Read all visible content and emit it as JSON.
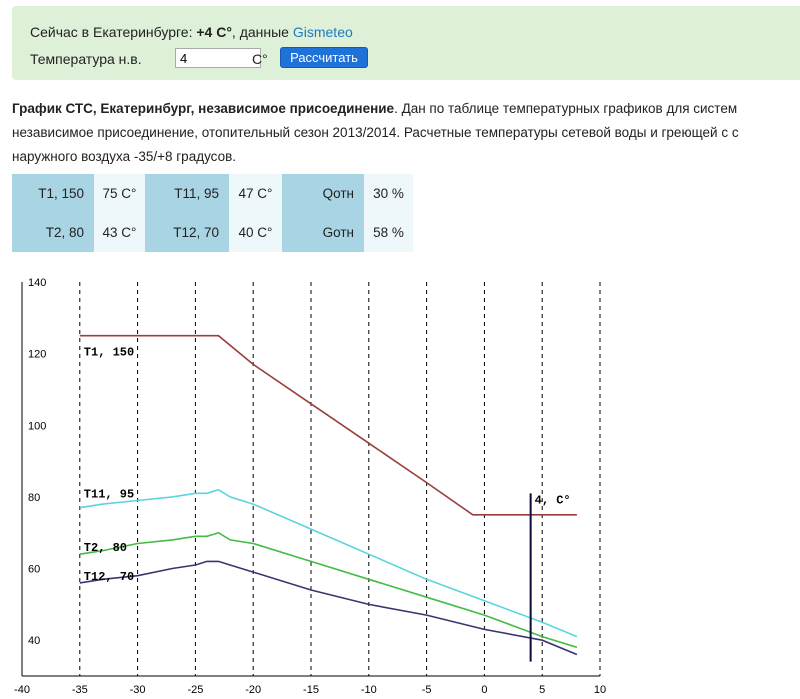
{
  "header": {
    "prefix": "Сейчас в Екатеринбурге:",
    "temp": "+4 С°",
    "middle": ", данные",
    "source_link": "Gismeteo",
    "input_label": "Температура н.в.",
    "input_value": "4",
    "input_unit": "С°",
    "button_label": "Рассчитать"
  },
  "description": {
    "title": "График СТС, Екатеринбург, независимое присоединение",
    "line1": ". Дан по таблице температурных графиков для систем",
    "line2": "независимое присоединение, отопительный сезон 2013/2014. Расчетные температуры сетевой воды и греющей с с",
    "line3": "наружного воздуха -35/+8 градусов."
  },
  "params": [
    [
      {
        "k": "T1, 150",
        "v": "75 С°"
      },
      {
        "k": "T11, 95",
        "v": "47 С°"
      },
      {
        "k": "Qотн",
        "v": "30 %"
      }
    ],
    [
      {
        "k": "T2, 80",
        "v": "43 С°"
      },
      {
        "k": "T12, 70",
        "v": "40 С°"
      },
      {
        "k": "Gотн",
        "v": "58 %"
      }
    ]
  ],
  "chart_data": {
    "type": "line",
    "xlim": [
      -40,
      10
    ],
    "ylim": [
      30,
      140
    ],
    "xticks": [
      -40,
      -35,
      -30,
      -25,
      -20,
      -15,
      -10,
      -5,
      0,
      5,
      10
    ],
    "yticks": [
      40,
      60,
      80,
      100,
      120,
      140
    ],
    "grid": "vertical dashed",
    "marker": {
      "x": 4,
      "label": "4, С°",
      "ymin": 34,
      "ymax": 81
    },
    "series": [
      {
        "name": "T1, 150",
        "color": "#9b3d3d",
        "x": [
          -35,
          -23,
          -20,
          -15,
          -10,
          -5,
          -1,
          8
        ],
        "y": [
          125,
          125,
          117,
          106,
          95,
          84,
          75,
          75
        ]
      },
      {
        "name": "T11, 95",
        "color": "#5bd4dc",
        "x": [
          -35,
          -33,
          -30,
          -27,
          -25,
          -24,
          -23,
          -22,
          -20,
          -15,
          -10,
          -5,
          0,
          5,
          8
        ],
        "y": [
          77,
          78,
          79,
          80,
          81,
          81,
          82,
          80,
          78,
          71,
          64,
          57,
          51,
          45,
          41
        ]
      },
      {
        "name": "T2, 80",
        "color": "#44bb44",
        "x": [
          -35,
          -33,
          -30,
          -27,
          -25,
          -24,
          -23,
          -22,
          -20,
          -15,
          -10,
          -5,
          0,
          5,
          8
        ],
        "y": [
          64,
          65,
          67,
          68,
          69,
          69,
          70,
          68,
          67,
          62,
          57,
          52,
          47,
          41,
          38
        ]
      },
      {
        "name": "T12, 70",
        "color": "#3a3570",
        "x": [
          -35,
          -33,
          -30,
          -27,
          -25,
          -24,
          -23,
          -22,
          -20,
          -15,
          -10,
          -5,
          0,
          5,
          8
        ],
        "y": [
          56,
          57,
          58,
          60,
          61,
          62,
          62,
          61,
          59,
          54,
          50,
          47,
          43,
          40,
          36
        ]
      }
    ]
  }
}
